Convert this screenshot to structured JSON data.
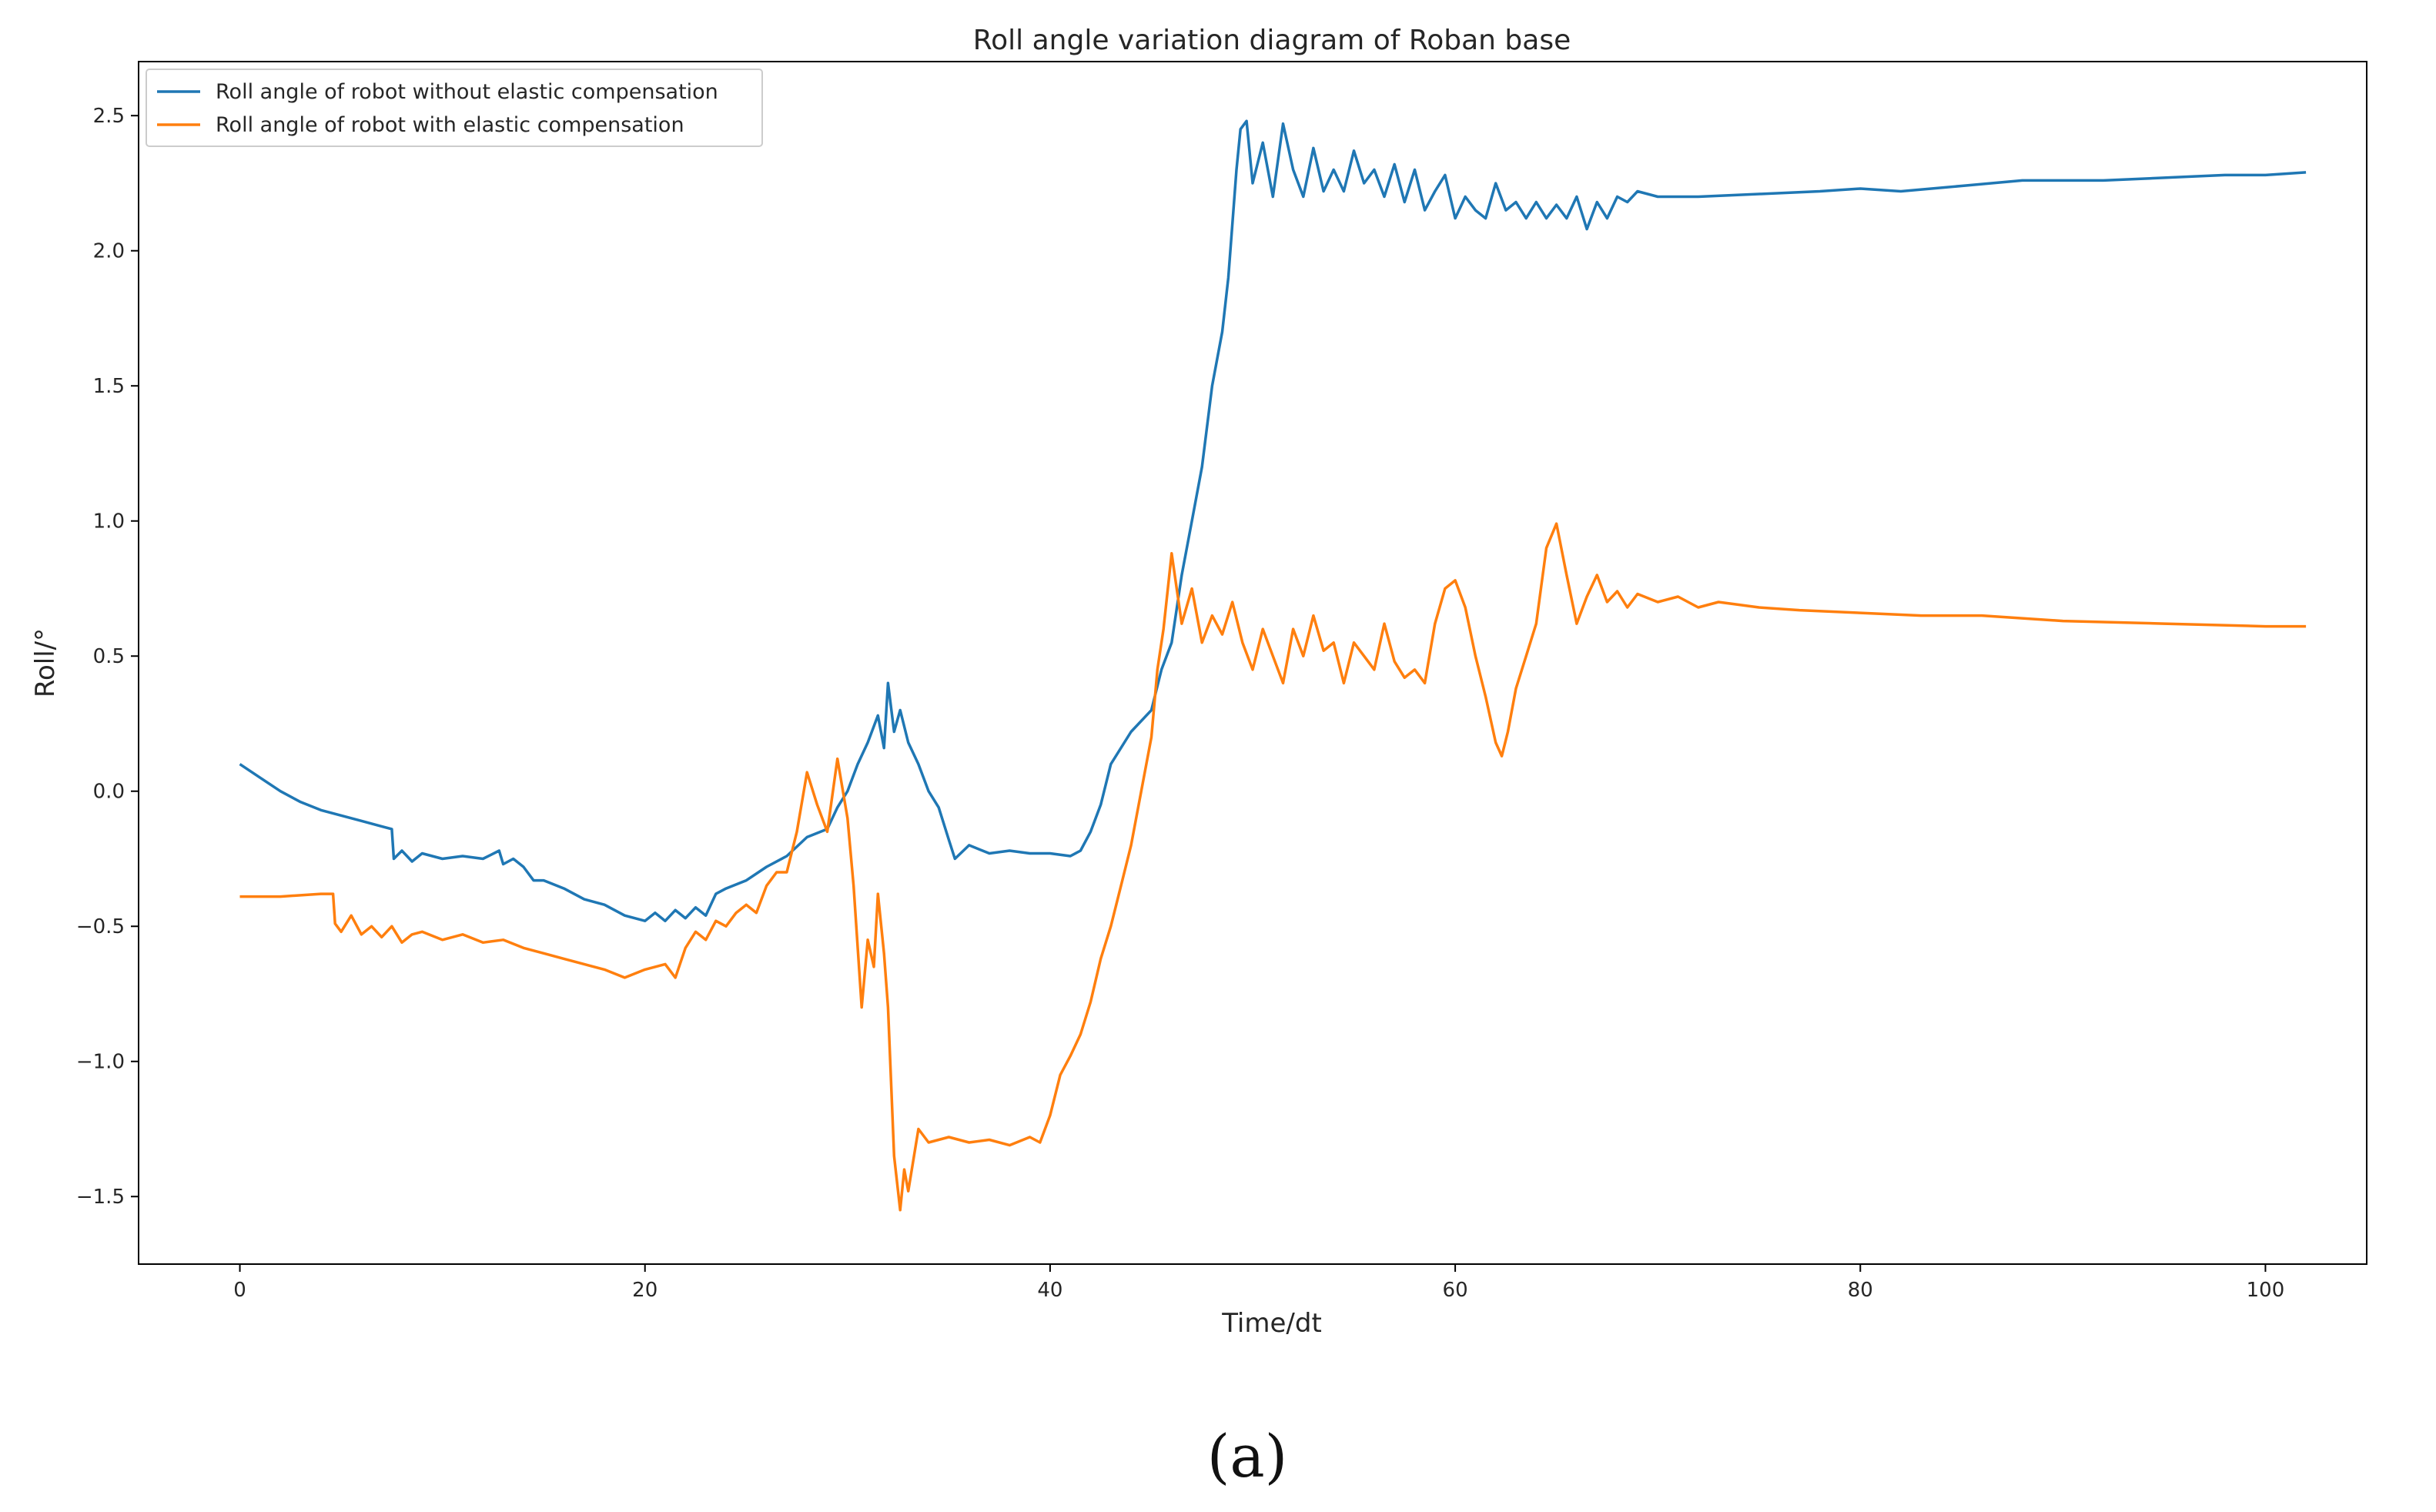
{
  "chart_data": {
    "type": "line",
    "title": "Roll angle variation diagram of Roban base",
    "xlabel": "Time/dt",
    "ylabel": "Roll/°",
    "xlim": [
      -5,
      105
    ],
    "ylim": [
      -1.75,
      2.7
    ],
    "xticks": [
      0,
      20,
      40,
      60,
      80,
      100
    ],
    "yticks": [
      -1.5,
      -1.0,
      -0.5,
      0.0,
      0.5,
      1.0,
      1.5,
      2.0,
      2.5
    ],
    "xtick_labels": [
      "0",
      "20",
      "40",
      "60",
      "80",
      "100"
    ],
    "ytick_labels": [
      "−1.5",
      "−1.0",
      "−0.5",
      "0.0",
      "0.5",
      "1.0",
      "1.5",
      "2.0",
      "2.5"
    ],
    "grid": false,
    "legend_position": "top-left",
    "series": [
      {
        "name": "Roll angle of robot without elastic compensation",
        "color": "#1f77b4",
        "points": [
          [
            0,
            0.1
          ],
          [
            1,
            0.05
          ],
          [
            2,
            0.0
          ],
          [
            3,
            -0.04
          ],
          [
            4,
            -0.07
          ],
          [
            5,
            -0.09
          ],
          [
            6,
            -0.11
          ],
          [
            7,
            -0.13
          ],
          [
            7.5,
            -0.14
          ],
          [
            7.6,
            -0.25
          ],
          [
            8,
            -0.22
          ],
          [
            8.5,
            -0.26
          ],
          [
            9,
            -0.23
          ],
          [
            10,
            -0.25
          ],
          [
            11,
            -0.24
          ],
          [
            12,
            -0.25
          ],
          [
            12.8,
            -0.22
          ],
          [
            13,
            -0.27
          ],
          [
            13.5,
            -0.25
          ],
          [
            14,
            -0.28
          ],
          [
            14.5,
            -0.33
          ],
          [
            15,
            -0.33
          ],
          [
            16,
            -0.36
          ],
          [
            17,
            -0.4
          ],
          [
            18,
            -0.42
          ],
          [
            19,
            -0.46
          ],
          [
            20,
            -0.48
          ],
          [
            20.5,
            -0.45
          ],
          [
            21,
            -0.48
          ],
          [
            21.5,
            -0.44
          ],
          [
            22,
            -0.47
          ],
          [
            22.5,
            -0.43
          ],
          [
            23,
            -0.46
          ],
          [
            23.5,
            -0.38
          ],
          [
            24,
            -0.36
          ],
          [
            25,
            -0.33
          ],
          [
            26,
            -0.28
          ],
          [
            27,
            -0.24
          ],
          [
            28,
            -0.17
          ],
          [
            29,
            -0.14
          ],
          [
            29.5,
            -0.06
          ],
          [
            30,
            0.0
          ],
          [
            30.5,
            0.1
          ],
          [
            31,
            0.18
          ],
          [
            31.5,
            0.28
          ],
          [
            31.8,
            0.16
          ],
          [
            32,
            0.4
          ],
          [
            32.3,
            0.22
          ],
          [
            32.6,
            0.3
          ],
          [
            33,
            0.18
          ],
          [
            33.5,
            0.1
          ],
          [
            34,
            0.0
          ],
          [
            34.5,
            -0.06
          ],
          [
            35,
            -0.18
          ],
          [
            35.3,
            -0.25
          ],
          [
            36,
            -0.2
          ],
          [
            37,
            -0.23
          ],
          [
            38,
            -0.22
          ],
          [
            39,
            -0.23
          ],
          [
            40,
            -0.23
          ],
          [
            41,
            -0.24
          ],
          [
            41.5,
            -0.22
          ],
          [
            42,
            -0.15
          ],
          [
            42.5,
            -0.05
          ],
          [
            43,
            0.1
          ],
          [
            44,
            0.22
          ],
          [
            45,
            0.3
          ],
          [
            45.5,
            0.45
          ],
          [
            46,
            0.55
          ],
          [
            46.5,
            0.8
          ],
          [
            47,
            1.0
          ],
          [
            47.5,
            1.2
          ],
          [
            48,
            1.5
          ],
          [
            48.5,
            1.7
          ],
          [
            48.8,
            1.9
          ],
          [
            49,
            2.1
          ],
          [
            49.2,
            2.3
          ],
          [
            49.4,
            2.45
          ],
          [
            49.7,
            2.48
          ],
          [
            50,
            2.25
          ],
          [
            50.5,
            2.4
          ],
          [
            51,
            2.2
          ],
          [
            51.5,
            2.47
          ],
          [
            52,
            2.3
          ],
          [
            52.5,
            2.2
          ],
          [
            53,
            2.38
          ],
          [
            53.5,
            2.22
          ],
          [
            54,
            2.3
          ],
          [
            54.5,
            2.22
          ],
          [
            55,
            2.37
          ],
          [
            55.5,
            2.25
          ],
          [
            56,
            2.3
          ],
          [
            56.5,
            2.2
          ],
          [
            57,
            2.32
          ],
          [
            57.5,
            2.18
          ],
          [
            58,
            2.3
          ],
          [
            58.5,
            2.15
          ],
          [
            59,
            2.22
          ],
          [
            59.5,
            2.28
          ],
          [
            60,
            2.12
          ],
          [
            60.5,
            2.2
          ],
          [
            61,
            2.15
          ],
          [
            61.5,
            2.12
          ],
          [
            62,
            2.25
          ],
          [
            62.5,
            2.15
          ],
          [
            63,
            2.18
          ],
          [
            63.5,
            2.12
          ],
          [
            64,
            2.18
          ],
          [
            64.5,
            2.12
          ],
          [
            65,
            2.17
          ],
          [
            65.5,
            2.12
          ],
          [
            66,
            2.2
          ],
          [
            66.5,
            2.08
          ],
          [
            67,
            2.18
          ],
          [
            67.5,
            2.12
          ],
          [
            68,
            2.2
          ],
          [
            68.5,
            2.18
          ],
          [
            69,
            2.22
          ],
          [
            70,
            2.2
          ],
          [
            72,
            2.2
          ],
          [
            75,
            2.21
          ],
          [
            78,
            2.22
          ],
          [
            80,
            2.23
          ],
          [
            82,
            2.22
          ],
          [
            85,
            2.24
          ],
          [
            88,
            2.26
          ],
          [
            90,
            2.26
          ],
          [
            92,
            2.26
          ],
          [
            95,
            2.27
          ],
          [
            98,
            2.28
          ],
          [
            100,
            2.28
          ],
          [
            102,
            2.29
          ]
        ]
      },
      {
        "name": "Roll angle of robot with elastic compensation",
        "color": "#ff7f0e",
        "points": [
          [
            0,
            -0.39
          ],
          [
            2,
            -0.39
          ],
          [
            4,
            -0.38
          ],
          [
            4.6,
            -0.38
          ],
          [
            4.7,
            -0.49
          ],
          [
            5,
            -0.52
          ],
          [
            5.5,
            -0.46
          ],
          [
            6,
            -0.53
          ],
          [
            6.5,
            -0.5
          ],
          [
            7,
            -0.54
          ],
          [
            7.5,
            -0.5
          ],
          [
            8,
            -0.56
          ],
          [
            8.5,
            -0.53
          ],
          [
            9,
            -0.52
          ],
          [
            10,
            -0.55
          ],
          [
            11,
            -0.53
          ],
          [
            12,
            -0.56
          ],
          [
            13,
            -0.55
          ],
          [
            14,
            -0.58
          ],
          [
            15,
            -0.6
          ],
          [
            16,
            -0.62
          ],
          [
            17,
            -0.64
          ],
          [
            18,
            -0.66
          ],
          [
            19,
            -0.69
          ],
          [
            20,
            -0.66
          ],
          [
            21,
            -0.64
          ],
          [
            21.5,
            -0.69
          ],
          [
            22,
            -0.58
          ],
          [
            22.5,
            -0.52
          ],
          [
            23,
            -0.55
          ],
          [
            23.5,
            -0.48
          ],
          [
            24,
            -0.5
          ],
          [
            24.5,
            -0.45
          ],
          [
            25,
            -0.42
          ],
          [
            25.5,
            -0.45
          ],
          [
            26,
            -0.35
          ],
          [
            26.5,
            -0.3
          ],
          [
            27,
            -0.3
          ],
          [
            27.5,
            -0.15
          ],
          [
            28,
            0.07
          ],
          [
            28.5,
            -0.05
          ],
          [
            29,
            -0.15
          ],
          [
            29.5,
            0.12
          ],
          [
            30,
            -0.1
          ],
          [
            30.3,
            -0.35
          ],
          [
            30.7,
            -0.8
          ],
          [
            31,
            -0.55
          ],
          [
            31.3,
            -0.65
          ],
          [
            31.5,
            -0.38
          ],
          [
            31.8,
            -0.6
          ],
          [
            32,
            -0.8
          ],
          [
            32.3,
            -1.35
          ],
          [
            32.6,
            -1.55
          ],
          [
            32.8,
            -1.4
          ],
          [
            33,
            -1.48
          ],
          [
            33.5,
            -1.25
          ],
          [
            34,
            -1.3
          ],
          [
            35,
            -1.28
          ],
          [
            36,
            -1.3
          ],
          [
            37,
            -1.29
          ],
          [
            38,
            -1.31
          ],
          [
            39,
            -1.28
          ],
          [
            39.5,
            -1.3
          ],
          [
            40,
            -1.2
          ],
          [
            40.5,
            -1.05
          ],
          [
            41,
            -0.98
          ],
          [
            41.5,
            -0.9
          ],
          [
            42,
            -0.78
          ],
          [
            42.5,
            -0.62
          ],
          [
            43,
            -0.5
          ],
          [
            43.5,
            -0.35
          ],
          [
            44,
            -0.2
          ],
          [
            44.5,
            0.0
          ],
          [
            45,
            0.2
          ],
          [
            45.3,
            0.45
          ],
          [
            45.6,
            0.6
          ],
          [
            46,
            0.88
          ],
          [
            46.5,
            0.62
          ],
          [
            47,
            0.75
          ],
          [
            47.5,
            0.55
          ],
          [
            48,
            0.65
          ],
          [
            48.5,
            0.58
          ],
          [
            49,
            0.7
          ],
          [
            49.5,
            0.55
          ],
          [
            50,
            0.45
          ],
          [
            50.5,
            0.6
          ],
          [
            51,
            0.5
          ],
          [
            51.5,
            0.4
          ],
          [
            52,
            0.6
          ],
          [
            52.5,
            0.5
          ],
          [
            53,
            0.65
          ],
          [
            53.5,
            0.52
          ],
          [
            54,
            0.55
          ],
          [
            54.5,
            0.4
          ],
          [
            55,
            0.55
          ],
          [
            55.5,
            0.5
          ],
          [
            56,
            0.45
          ],
          [
            56.5,
            0.62
          ],
          [
            57,
            0.48
          ],
          [
            57.5,
            0.42
          ],
          [
            58,
            0.45
          ],
          [
            58.5,
            0.4
          ],
          [
            59,
            0.62
          ],
          [
            59.5,
            0.75
          ],
          [
            60,
            0.78
          ],
          [
            60.5,
            0.68
          ],
          [
            61,
            0.5
          ],
          [
            61.5,
            0.35
          ],
          [
            62,
            0.18
          ],
          [
            62.3,
            0.13
          ],
          [
            62.6,
            0.22
          ],
          [
            63,
            0.38
          ],
          [
            63.5,
            0.5
          ],
          [
            64,
            0.62
          ],
          [
            64.5,
            0.9
          ],
          [
            65,
            0.99
          ],
          [
            65.5,
            0.8
          ],
          [
            66,
            0.62
          ],
          [
            66.5,
            0.72
          ],
          [
            67,
            0.8
          ],
          [
            67.5,
            0.7
          ],
          [
            68,
            0.74
          ],
          [
            68.5,
            0.68
          ],
          [
            69,
            0.73
          ],
          [
            70,
            0.7
          ],
          [
            71,
            0.72
          ],
          [
            72,
            0.68
          ],
          [
            73,
            0.7
          ],
          [
            75,
            0.68
          ],
          [
            77,
            0.67
          ],
          [
            80,
            0.66
          ],
          [
            83,
            0.65
          ],
          [
            86,
            0.65
          ],
          [
            90,
            0.63
          ],
          [
            95,
            0.62
          ],
          [
            100,
            0.61
          ],
          [
            102,
            0.61
          ]
        ]
      }
    ]
  },
  "caption": "(a)"
}
